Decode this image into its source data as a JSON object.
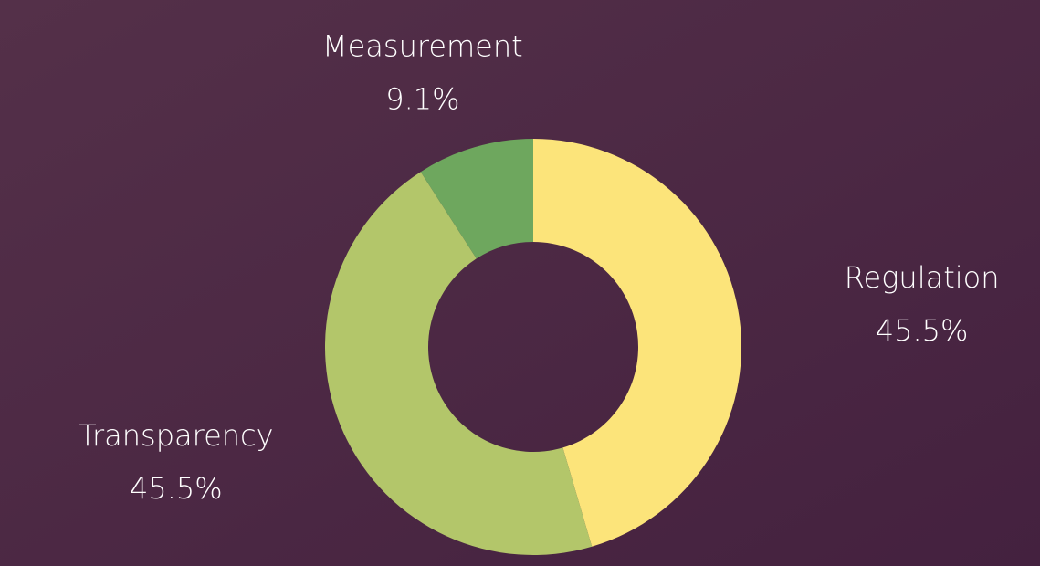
{
  "chart_data": {
    "type": "donut",
    "categories": [
      "Regulation",
      "Transparency",
      "Measurement"
    ],
    "values": [
      45.5,
      45.5,
      9.1
    ],
    "value_labels": [
      "45.5%",
      "45.5%",
      "9.1%"
    ],
    "colors": [
      "#fce47a",
      "#b3c66a",
      "#6ea75e"
    ]
  }
}
